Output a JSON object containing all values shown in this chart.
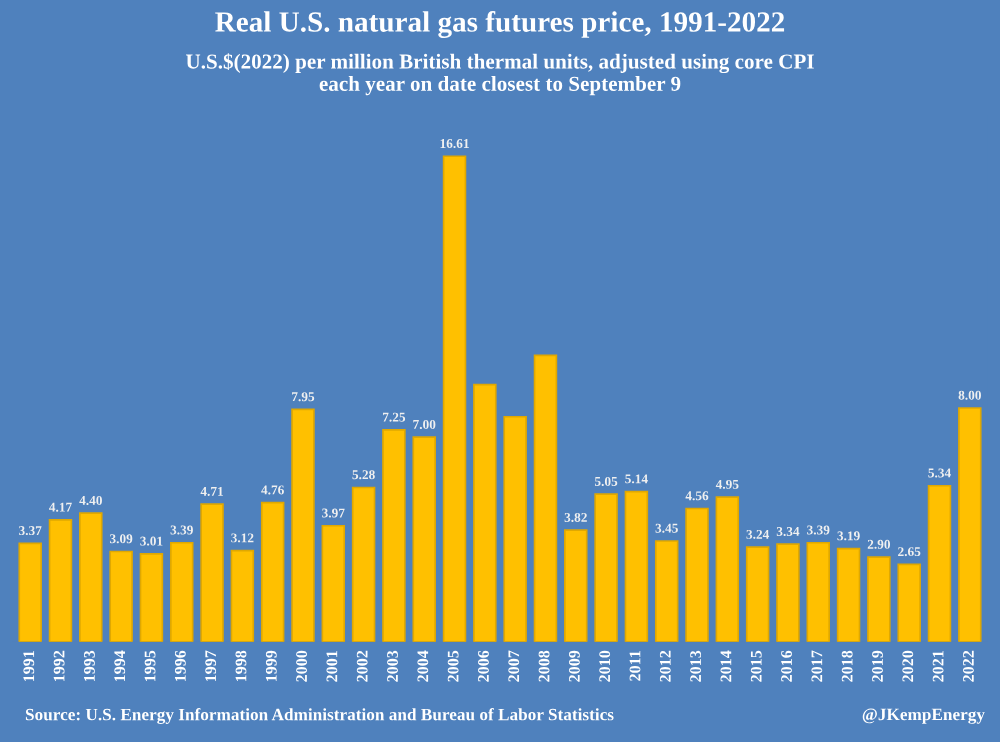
{
  "chart_data": {
    "type": "bar",
    "title": "Real U.S. natural gas futures price, 1991-2022",
    "subtitle": "U.S.$(2022) per million British thermal units, adjusted using core CPI\neach year on date closest to September 9",
    "categories": [
      "1991",
      "1992",
      "1993",
      "1994",
      "1995",
      "1996",
      "1997",
      "1998",
      "1999",
      "2000",
      "2001",
      "2002",
      "2003",
      "2004",
      "2005",
      "2006",
      "2007",
      "2008",
      "2009",
      "2010",
      "2011",
      "2012",
      "2013",
      "2014",
      "2015",
      "2016",
      "2017",
      "2018",
      "2019",
      "2020",
      "2021",
      "2022"
    ],
    "values": [
      3.37,
      4.17,
      4.4,
      3.09,
      3.01,
      3.39,
      4.71,
      3.12,
      4.76,
      7.95,
      3.97,
      5.28,
      7.25,
      7.0,
      16.61,
      8.8,
      7.7,
      9.8,
      3.82,
      5.05,
      5.14,
      3.45,
      4.56,
      4.95,
      3.24,
      3.34,
      3.39,
      3.19,
      2.9,
      2.65,
      5.34,
      8.0
    ],
    "value_labels": [
      "3.37",
      "4.17",
      "4.40",
      "3.09",
      "3.01",
      "3.39",
      "4.71",
      "3.12",
      "4.76",
      "7.95",
      "3.97",
      "5.28",
      "7.25",
      "7.00",
      "16.61",
      null,
      null,
      null,
      "3.82",
      "5.05",
      "5.14",
      "3.45",
      "4.56",
      "4.95",
      "3.24",
      "3.34",
      "3.39",
      "3.19",
      "2.90",
      "2.65",
      "5.34",
      "8.00"
    ],
    "color": "#ffc000",
    "grid": false,
    "legend": false,
    "annotations": [
      "Source: U.S. Energy Information Administration and Bureau of Labor Statistics",
      "@JKempEnergy"
    ]
  }
}
